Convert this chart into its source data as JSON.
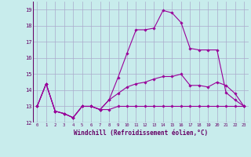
{
  "xlabel": "Windchill (Refroidissement éolien,°C)",
  "background_color": "#c8ecec",
  "grid_color": "#aaaacc",
  "line_color": "#990099",
  "xlim": [
    -0.5,
    23.5
  ],
  "ylim": [
    12.0,
    19.5
  ],
  "yticks": [
    12,
    13,
    14,
    15,
    16,
    17,
    18,
    19
  ],
  "xticks": [
    0,
    1,
    2,
    3,
    4,
    5,
    6,
    7,
    8,
    9,
    10,
    11,
    12,
    13,
    14,
    15,
    16,
    17,
    18,
    19,
    20,
    21,
    22,
    23
  ],
  "series": [
    {
      "x": [
        0,
        1,
        2,
        3,
        4,
        5,
        6,
        7,
        8,
        9,
        10,
        11,
        12,
        13,
        14,
        15,
        16,
        17,
        18,
        19,
        20,
        21,
        22,
        23
      ],
      "y": [
        13.0,
        14.4,
        12.7,
        12.55,
        12.3,
        13.0,
        13.0,
        12.8,
        12.8,
        13.0,
        13.0,
        13.0,
        13.0,
        13.0,
        13.0,
        13.0,
        13.0,
        13.0,
        13.0,
        13.0,
        13.0,
        13.0,
        13.0,
        13.0
      ]
    },
    {
      "x": [
        0,
        1,
        2,
        3,
        4,
        5,
        6,
        7,
        8,
        9,
        10,
        11,
        12,
        13,
        14,
        15,
        16,
        17,
        18,
        19,
        20,
        21,
        22,
        23
      ],
      "y": [
        13.0,
        14.4,
        12.7,
        12.55,
        12.3,
        13.0,
        13.0,
        12.8,
        13.4,
        13.8,
        14.2,
        14.4,
        14.5,
        14.7,
        14.85,
        14.85,
        15.0,
        14.3,
        14.3,
        14.2,
        14.5,
        14.3,
        13.8,
        13.0
      ]
    },
    {
      "x": [
        0,
        1,
        2,
        3,
        4,
        5,
        6,
        7,
        8,
        9,
        10,
        11,
        12,
        13,
        14,
        15,
        16,
        17,
        18,
        19,
        20,
        21,
        22,
        23
      ],
      "y": [
        13.0,
        14.4,
        12.7,
        12.55,
        12.3,
        13.0,
        13.0,
        12.8,
        13.4,
        14.8,
        16.3,
        17.75,
        17.75,
        17.85,
        18.95,
        18.8,
        18.2,
        16.6,
        16.5,
        16.5,
        16.5,
        13.85,
        13.4,
        13.0
      ]
    }
  ]
}
